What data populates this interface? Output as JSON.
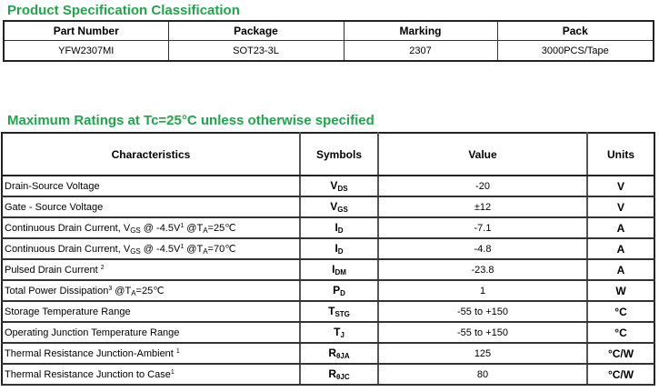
{
  "spec": {
    "title": "Product Specification Classification",
    "headers": [
      "Part Number",
      "Package",
      "Marking",
      "Pack"
    ],
    "row": [
      "YFW2307MI",
      "SOT23-3L",
      "2307",
      "3000PCS/Tape"
    ]
  },
  "ratings": {
    "title": "Maximum Ratings at Tc=25°C unless otherwise specified",
    "headers": [
      "Characteristics",
      "Symbols",
      "Value",
      "Units"
    ],
    "rows": [
      {
        "ch": [
          {
            "t": "Drain-Source Voltage"
          }
        ],
        "sym": "V",
        "sub": "DS",
        "value": "-20",
        "unit": "V"
      },
      {
        "ch": [
          {
            "t": "Gate - Source Voltage"
          }
        ],
        "sym": "V",
        "sub": "GS",
        "value": "±12",
        "unit": "V"
      },
      {
        "ch": [
          {
            "t": "Continuous Drain Current, V"
          },
          {
            "t": "GS",
            "s": "sub"
          },
          {
            "t": " @ -4.5V"
          },
          {
            "t": "1",
            "s": "sup"
          },
          {
            "t": "  @T"
          },
          {
            "t": "A",
            "s": "sub"
          },
          {
            "t": "=25℃"
          }
        ],
        "sym": "I",
        "sub": "D",
        "value": "-7.1",
        "unit": "A"
      },
      {
        "ch": [
          {
            "t": "Continuous Drain Current, V"
          },
          {
            "t": "GS",
            "s": "sub"
          },
          {
            "t": " @ -4.5V"
          },
          {
            "t": "1",
            "s": "sup"
          },
          {
            "t": " @T"
          },
          {
            "t": "A",
            "s": "sub"
          },
          {
            "t": "=70℃"
          }
        ],
        "sym": "I",
        "sub": "D",
        "value": "-4.8",
        "unit": "A"
      },
      {
        "ch": [
          {
            "t": "Pulsed Drain Current "
          },
          {
            "t": "2",
            "s": "sup"
          }
        ],
        "sym": "I",
        "sub": "DM",
        "value": "-23.8",
        "unit": "A"
      },
      {
        "ch": [
          {
            "t": "Total Power Dissipation"
          },
          {
            "t": "3",
            "s": "sup"
          },
          {
            "t": " @T"
          },
          {
            "t": "A",
            "s": "sub"
          },
          {
            "t": "=25℃"
          }
        ],
        "sym": "P",
        "sub": "D",
        "value": "1",
        "unit": "W"
      },
      {
        "ch": [
          {
            "t": "Storage Temperature Range"
          }
        ],
        "sym": "T",
        "sub": "STG",
        "value": "-55 to +150",
        "unit": "°C"
      },
      {
        "ch": [
          {
            "t": "Operating Junction Temperature Range"
          }
        ],
        "sym": "T",
        "sub": "J",
        "value": "-55 to +150",
        "unit": "°C"
      },
      {
        "ch": [
          {
            "t": "Thermal Resistance Junction-Ambient "
          },
          {
            "t": "1",
            "s": "sup"
          }
        ],
        "sym": "R",
        "sub": "θJA",
        "value": "125",
        "unit": "°C/W"
      },
      {
        "ch": [
          {
            "t": "Thermal Resistance Junction to Case"
          },
          {
            "t": "1",
            "s": "sup"
          }
        ],
        "sym": "R",
        "sub": "θJC",
        "value": "80",
        "unit": "°C/W"
      }
    ]
  }
}
